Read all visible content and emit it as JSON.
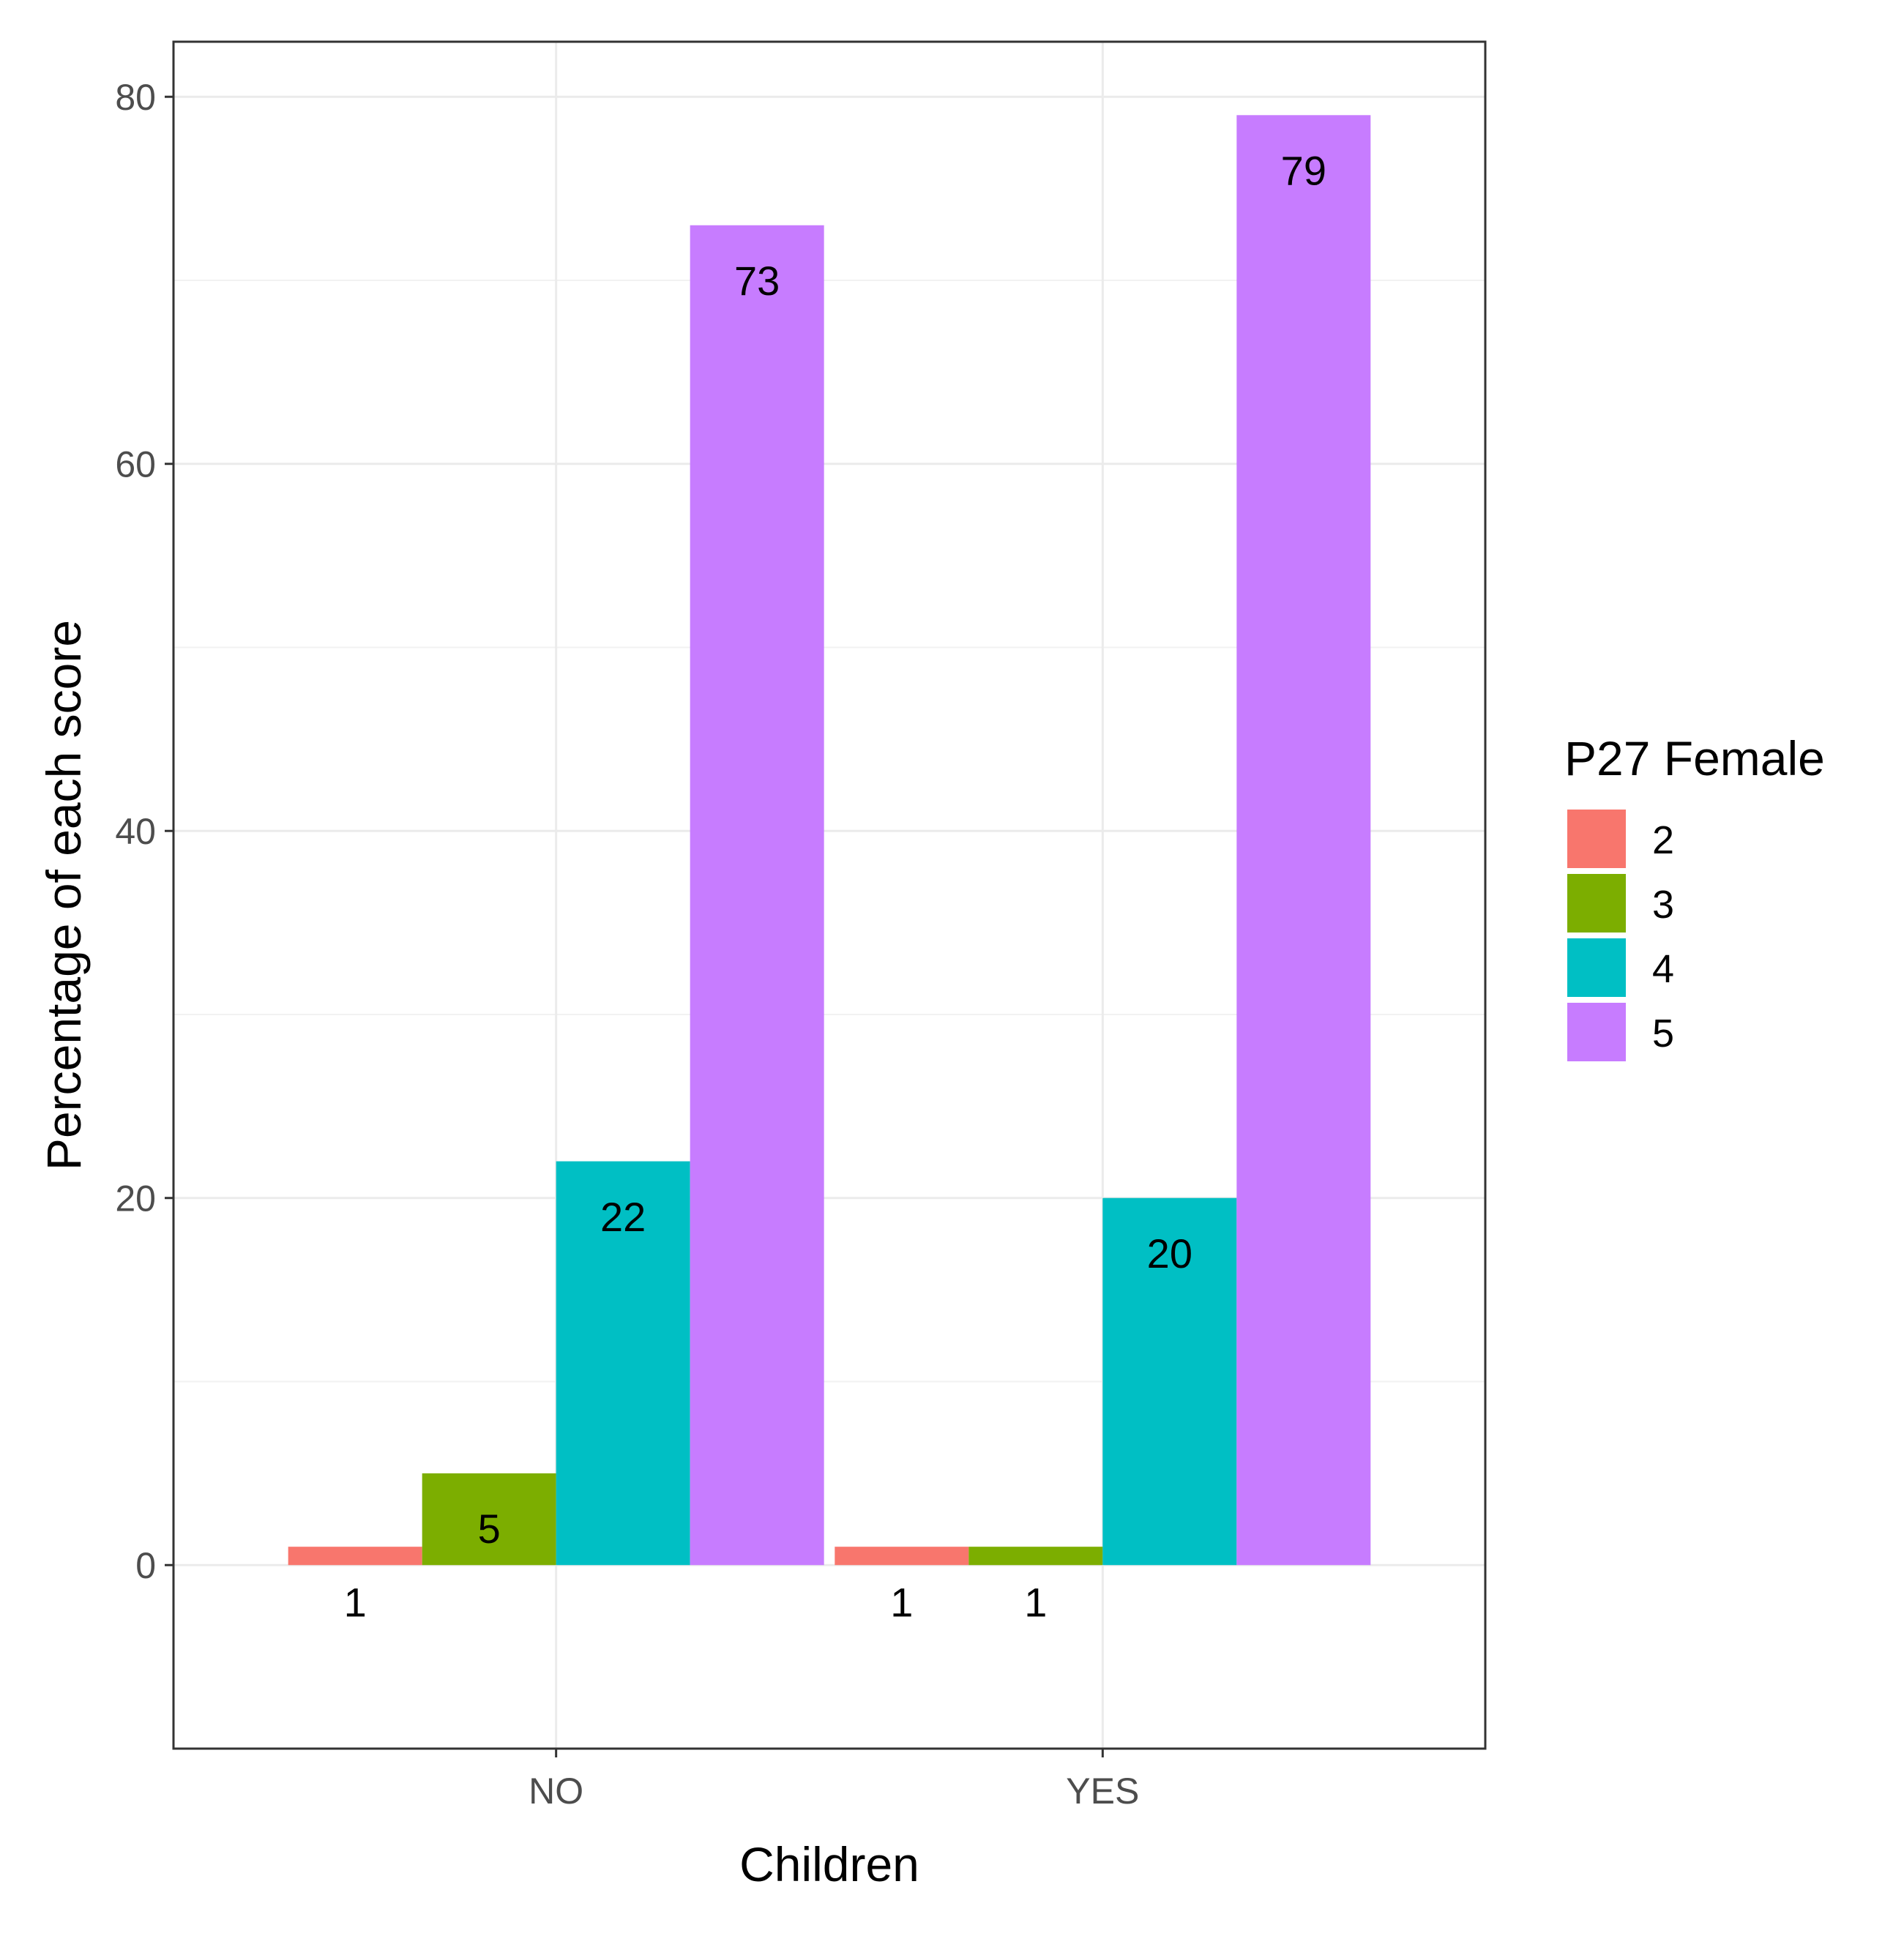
{
  "chart_data": {
    "type": "bar",
    "title": "",
    "xlabel": "Children",
    "ylabel": "Percentage of each score",
    "categories": [
      "NO",
      "YES"
    ],
    "ylim": [
      -10,
      83
    ],
    "yticks": [
      0,
      20,
      40,
      60,
      80
    ],
    "grid": true,
    "legend": {
      "title": "P27 Female",
      "position": "right"
    },
    "series": [
      {
        "name": "2",
        "color": "#F8766D",
        "values": [
          1,
          1
        ],
        "labels": [
          "1",
          "1"
        ]
      },
      {
        "name": "3",
        "color": "#7CAE00",
        "values": [
          5,
          1
        ],
        "labels": [
          "5",
          "1"
        ]
      },
      {
        "name": "4",
        "color": "#00BFC4",
        "values": [
          22,
          20
        ],
        "labels": [
          "22",
          "20"
        ]
      },
      {
        "name": "5",
        "color": "#C77CFF",
        "values": [
          73,
          79
        ],
        "labels": [
          "73",
          "79"
        ]
      }
    ]
  }
}
